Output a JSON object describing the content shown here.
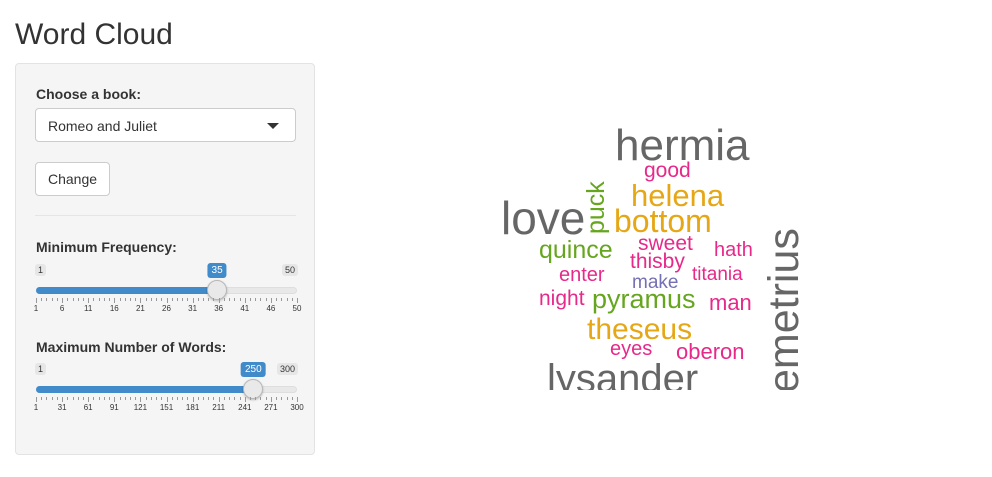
{
  "app": {
    "title": "Word Cloud"
  },
  "sidebar": {
    "book_label": "Choose a book:",
    "book_selected": "Romeo and Juliet",
    "change_button": "Change",
    "min_freq": {
      "label": "Minimum Frequency:",
      "min": 1,
      "max": 50,
      "value": 35,
      "min_text": "1",
      "max_text": "50",
      "value_text": "35",
      "ticks": [
        "1",
        "6",
        "11",
        "16",
        "21",
        "26",
        "31",
        "36",
        "41",
        "46",
        "50"
      ]
    },
    "max_words": {
      "label": "Maximum Number of Words:",
      "min": 1,
      "max": 300,
      "value": 250,
      "min_text": "1",
      "max_text": "300",
      "value_text": "250",
      "ticks": [
        "1",
        "31",
        "61",
        "91",
        "121",
        "151",
        "181",
        "211",
        "241",
        "271",
        "300"
      ]
    }
  },
  "colors": {
    "accent": "#428bca",
    "gray": "#666666",
    "orange": "#e6a717",
    "green": "#66a61e",
    "magenta": "#e7298a",
    "purple": "#7570b3"
  },
  "wordcloud": {
    "words": [
      {
        "text": "hermia",
        "color": "gray"
      },
      {
        "text": "good",
        "color": "magenta"
      },
      {
        "text": "puck",
        "color": "green"
      },
      {
        "text": "helena",
        "color": "orange"
      },
      {
        "text": "love",
        "color": "gray"
      },
      {
        "text": "bottom",
        "color": "orange"
      },
      {
        "text": "emetrius",
        "color": "gray"
      },
      {
        "text": "quince",
        "color": "green"
      },
      {
        "text": "sweet",
        "color": "magenta"
      },
      {
        "text": "hath",
        "color": "magenta"
      },
      {
        "text": "thisby",
        "color": "magenta"
      },
      {
        "text": "enter",
        "color": "magenta"
      },
      {
        "text": "titania",
        "color": "magenta"
      },
      {
        "text": "make",
        "color": "purple"
      },
      {
        "text": "night",
        "color": "magenta"
      },
      {
        "text": "pyramus",
        "color": "green"
      },
      {
        "text": "man",
        "color": "magenta"
      },
      {
        "text": "theseus",
        "color": "orange"
      },
      {
        "text": "eyes",
        "color": "magenta"
      },
      {
        "text": "oberon",
        "color": "magenta"
      },
      {
        "text": "lysander",
        "color": "gray"
      }
    ]
  }
}
